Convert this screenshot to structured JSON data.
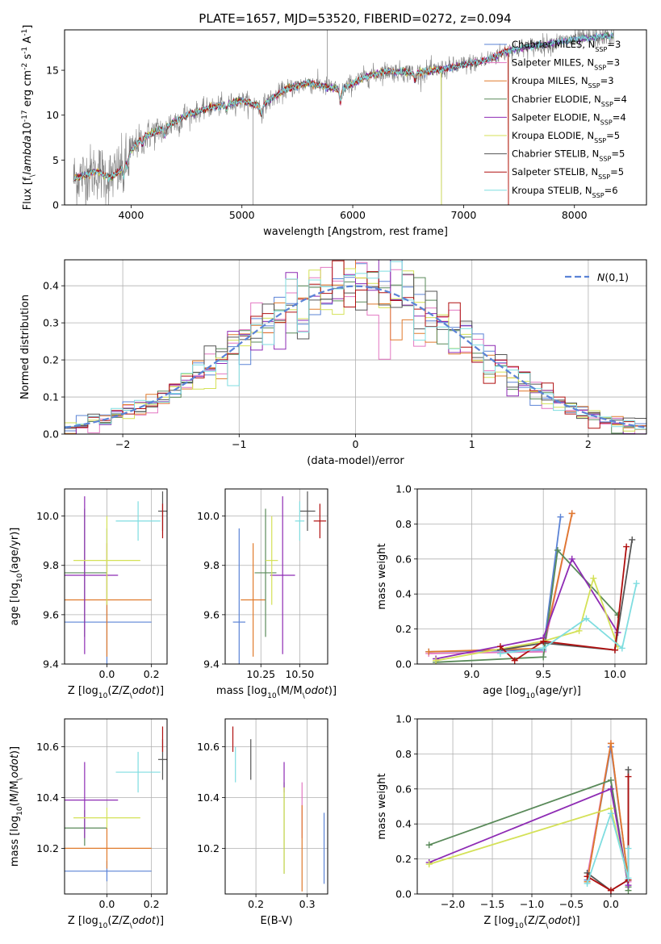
{
  "title": "PLATE=1657, MJD=53520, FIBERID=0272, z=0.094",
  "series_names": [
    "Chabrier MILES, N$_{SSP}$=3",
    "Salpeter MILES, N$_{SSP}$=3",
    "Kroupa MILES, N$_{SSP}$=3",
    "Chabrier ELODIE, N$_{SSP}$=4",
    "Salpeter ELODIE, N$_{SSP}$=4",
    "Kroupa ELODIE, N$_{SSP}$=5",
    "Chabrier STELIB, N$_{SSP}$=5",
    "Salpeter STELIB, N$_{SSP}$=5",
    "Kroupa STELIB, N$_{SSP}$=6"
  ],
  "colors": {
    "chabrier_miles": "#5b83d6",
    "salpeter_miles": "#e377c2",
    "kroupa_miles": "#e07a2c",
    "chabrier_elodie": "#5a8a5a",
    "salpeter_elodie": "#8e2bb4",
    "kroupa_elodie": "#d4e157",
    "chabrier_stelib": "#555555",
    "salpeter_stelib": "#b01010",
    "kroupa_stelib": "#7fdde0",
    "data": "#808080",
    "grid": "#b0b0b0"
  },
  "chart_data": [
    {
      "type": "line",
      "panel": "spectrum",
      "xlabel": "wavelength [Angstrom, rest frame]",
      "ylabel": "Flux [f$_\\lambda$10$^{-17}$ erg cm$^{-2}$ s$^{-1}$ A$^{-1}$]",
      "xlim": [
        3400,
        8650
      ],
      "ylim": [
        0,
        19.5
      ],
      "xticks": [
        4000,
        5000,
        6000,
        7000,
        8000
      ],
      "yticks": [
        0,
        5,
        10,
        15
      ],
      "legend": "top-right",
      "model_anchor": {
        "x": [
          3500,
          3700,
          3800,
          3900,
          4000,
          4100,
          4300,
          4500,
          4700,
          4860,
          5000,
          5175,
          5400,
          5600,
          5890,
          6100,
          6300,
          6563,
          6800,
          7000,
          7200,
          7400,
          7700,
          8000,
          8300
        ],
        "y": [
          3.0,
          3.8,
          3.0,
          3.8,
          6.0,
          7.5,
          8.6,
          10.0,
          10.8,
          11.2,
          11.6,
          11.0,
          12.9,
          13.6,
          12.8,
          14.2,
          14.9,
          14.7,
          15.1,
          15.6,
          16.1,
          17.2,
          17.8,
          18.4,
          18.8
        ]
      },
      "spikes": [
        {
          "x": 5100,
          "y": 0
        },
        {
          "x": 5770,
          "y": 19.5
        },
        {
          "x": 6800,
          "y": 0
        },
        {
          "x": 7405,
          "y": 0
        }
      ]
    },
    {
      "type": "histogram",
      "panel": "residuals",
      "xlabel": "(data-model)/error",
      "ylabel": "Normed distribution",
      "xlim": [
        -2.5,
        2.5
      ],
      "ylim": [
        0,
        0.47
      ],
      "xticks": [
        -2,
        -1,
        0,
        1,
        2
      ],
      "yticks": [
        0.0,
        0.1,
        0.2,
        0.3,
        0.4
      ],
      "legend_label": "$\\mathcal{N}(0,1)$",
      "legend": "top-right",
      "bin_width": 0.1,
      "bin_start": -2.5
    },
    {
      "type": "errorbar",
      "panel": "age_vs_Z",
      "xlabel": "Z [log$_{10}$(Z/Z$_\\odot$)]",
      "ylabel": "age  [log$_{10}$(age/yr)]",
      "xlim": [
        -0.19,
        0.27
      ],
      "ylim": [
        9.4,
        10.11
      ],
      "xticks": [
        -0.0,
        0.2
      ],
      "xticklabels": [
        "0.0",
        "0.2"
      ],
      "yticks": [
        9.4,
        9.6,
        9.8,
        10.0
      ],
      "points": [
        {
          "model": 0,
          "x": 0.0,
          "xerr": 0.2,
          "y": 9.57,
          "yerr": 0.38
        },
        {
          "model": 1,
          "x": 0.0,
          "xerr": 0.0,
          "y": 9.66,
          "yerr": 0.0
        },
        {
          "model": 2,
          "x": 0.0,
          "xerr": 0.2,
          "y": 9.66,
          "yerr": 0.23
        },
        {
          "model": 3,
          "x": -0.1,
          "xerr": 0.1,
          "y": 9.77,
          "yerr": 0.26
        },
        {
          "model": 4,
          "x": -0.1,
          "xerr": 0.15,
          "y": 9.76,
          "yerr": 0.32
        },
        {
          "model": 5,
          "x": 0.0,
          "xerr": 0.15,
          "y": 9.82,
          "yerr": 0.18
        },
        {
          "model": 6,
          "x": 0.25,
          "xerr": 0.02,
          "y": 10.02,
          "yerr": 0.08
        },
        {
          "model": 7,
          "x": 0.25,
          "xerr": 0.0,
          "y": 9.98,
          "yerr": 0.07
        },
        {
          "model": 8,
          "x": 0.14,
          "xerr": 0.1,
          "y": 9.98,
          "yerr": 0.08
        }
      ]
    },
    {
      "type": "errorbar",
      "panel": "age_vs_mass",
      "xlabel": "mass [log$_{10}$(M/M$_\\odot$)]",
      "ylabel": "",
      "xlim": [
        10.02,
        10.68
      ],
      "ylim": [
        9.4,
        10.11
      ],
      "xticks": [
        10.25,
        10.5
      ],
      "xticklabels": [
        "10.25",
        "10.50"
      ],
      "yticks": [
        9.4,
        9.6,
        9.8,
        10.0
      ],
      "points": [
        {
          "model": 0,
          "x": 10.11,
          "xerr": 0.04,
          "y": 9.57,
          "yerr": 0.38
        },
        {
          "model": 1,
          "x": 10.33,
          "xerr": 0.0,
          "y": 9.66,
          "yerr": 0.0
        },
        {
          "model": 2,
          "x": 10.2,
          "xerr": 0.08,
          "y": 9.66,
          "yerr": 0.23
        },
        {
          "model": 3,
          "x": 10.28,
          "xerr": 0.07,
          "y": 9.77,
          "yerr": 0.26
        },
        {
          "model": 4,
          "x": 10.39,
          "xerr": 0.08,
          "y": 9.76,
          "yerr": 0.32
        },
        {
          "model": 5,
          "x": 10.32,
          "xerr": 0.04,
          "y": 9.82,
          "yerr": 0.18
        },
        {
          "model": 6,
          "x": 10.55,
          "xerr": 0.05,
          "y": 10.02,
          "yerr": 0.08
        },
        {
          "model": 7,
          "x": 10.63,
          "xerr": 0.04,
          "y": 9.98,
          "yerr": 0.07
        },
        {
          "model": 8,
          "x": 10.5,
          "xerr": 0.03,
          "y": 9.98,
          "yerr": 0.08
        }
      ]
    },
    {
      "type": "line",
      "panel": "weight_vs_age",
      "xlabel": "age  [log$_{10}$(age/yr)]",
      "ylabel": "mass weight",
      "xlim": [
        8.62,
        10.22
      ],
      "ylim": [
        0,
        1.0
      ],
      "xticks": [
        9.0,
        9.5,
        10.0
      ],
      "xticklabels": [
        "9.0",
        "9.5",
        "10.0"
      ],
      "yticks": [
        0.0,
        0.2,
        0.4,
        0.6,
        0.8,
        1.0
      ],
      "series": [
        {
          "model": 0,
          "x": [
            8.7,
            9.5,
            9.62
          ],
          "y": [
            0.07,
            0.08,
            0.84
          ]
        },
        {
          "model": 1,
          "x": [
            8.7,
            9.5,
            9.7
          ],
          "y": [
            0.06,
            0.07,
            0.86
          ]
        },
        {
          "model": 2,
          "x": [
            8.7,
            9.5,
            9.7
          ],
          "y": [
            0.07,
            0.09,
            0.86
          ]
        },
        {
          "model": 3,
          "x": [
            8.75,
            9.5,
            9.6,
            10.02
          ],
          "y": [
            0.01,
            0.04,
            0.65,
            0.28
          ]
        },
        {
          "model": 4,
          "x": [
            8.75,
            9.5,
            9.7,
            10.02
          ],
          "y": [
            0.03,
            0.15,
            0.6,
            0.18
          ]
        },
        {
          "model": 5,
          "x": [
            8.75,
            9.5,
            9.75,
            9.85,
            10.02
          ],
          "y": [
            0.02,
            0.13,
            0.19,
            0.49,
            0.1
          ]
        },
        {
          "model": 6,
          "x": [
            9.2,
            9.5,
            10.0,
            10.12
          ],
          "y": [
            0.08,
            0.12,
            0.08,
            0.71
          ]
        },
        {
          "model": 7,
          "x": [
            9.2,
            9.3,
            9.5,
            10.0,
            10.08
          ],
          "y": [
            0.1,
            0.02,
            0.13,
            0.08,
            0.67
          ]
        },
        {
          "model": 8,
          "x": [
            9.2,
            9.5,
            9.8,
            10.05,
            10.15
          ],
          "y": [
            0.06,
            0.09,
            0.26,
            0.09,
            0.46
          ]
        }
      ]
    },
    {
      "type": "errorbar",
      "panel": "mass_vs_Z",
      "xlabel": "Z [log$_{10}$(Z/Z$_\\odot$)]",
      "ylabel": "mass [log$_{10}$(M/M$_\\odot$)]",
      "xlim": [
        -0.19,
        0.27
      ],
      "ylim": [
        10.02,
        10.71
      ],
      "xticks": [
        -0.0,
        0.2
      ],
      "xticklabels": [
        "0.0",
        "0.2"
      ],
      "yticks": [
        10.2,
        10.4,
        10.6
      ],
      "points": [
        {
          "model": 0,
          "x": 0.0,
          "xerr": 0.2,
          "y": 10.11,
          "yerr": 0.04
        },
        {
          "model": 1,
          "x": 0.0,
          "xerr": 0.0,
          "y": 10.33,
          "yerr": 0.0
        },
        {
          "model": 2,
          "x": 0.0,
          "xerr": 0.2,
          "y": 10.2,
          "yerr": 0.08
        },
        {
          "model": 3,
          "x": -0.1,
          "xerr": 0.1,
          "y": 10.28,
          "yerr": 0.07
        },
        {
          "model": 4,
          "x": -0.1,
          "xerr": 0.15,
          "y": 10.39,
          "yerr": 0.15
        },
        {
          "model": 5,
          "x": 0.0,
          "xerr": 0.15,
          "y": 10.32,
          "yerr": 0.04
        },
        {
          "model": 6,
          "x": 0.25,
          "xerr": 0.02,
          "y": 10.55,
          "yerr": 0.08
        },
        {
          "model": 7,
          "x": 0.25,
          "xerr": 0.0,
          "y": 10.63,
          "yerr": 0.05
        },
        {
          "model": 8,
          "x": 0.14,
          "xerr": 0.1,
          "y": 10.5,
          "yerr": 0.08
        }
      ]
    },
    {
      "type": "errorbar",
      "panel": "mass_vs_EBV",
      "xlabel": "E(B-V)",
      "ylabel": "",
      "xlim": [
        0.14,
        0.34
      ],
      "ylim": [
        10.02,
        10.71
      ],
      "xticks": [
        0.2,
        0.3
      ],
      "xticklabels": [
        "0.2",
        "0.3"
      ],
      "yticks": [
        10.2,
        10.4,
        10.6
      ],
      "points": [
        {
          "model": 0,
          "x": 0.333,
          "xerr": 0.0,
          "y": 10.2,
          "yerr": 0.14
        },
        {
          "model": 1,
          "x": 0.29,
          "xerr": 0.0,
          "y": 10.35,
          "yerr": 0.11
        },
        {
          "model": 2,
          "x": 0.29,
          "xerr": 0.0,
          "y": 10.2,
          "yerr": 0.17
        },
        {
          "model": 3,
          "x": 0.255,
          "xerr": 0.0,
          "y": 10.28,
          "yerr": 0.18
        },
        {
          "model": 4,
          "x": 0.255,
          "xerr": 0.0,
          "y": 10.48,
          "yerr": 0.06
        },
        {
          "model": 5,
          "x": 0.255,
          "xerr": 0.0,
          "y": 10.27,
          "yerr": 0.17
        },
        {
          "model": 6,
          "x": 0.19,
          "xerr": 0.0,
          "y": 10.55,
          "yerr": 0.08
        },
        {
          "model": 7,
          "x": 0.155,
          "xerr": 0.0,
          "y": 10.63,
          "yerr": 0.05
        },
        {
          "model": 8,
          "x": 0.16,
          "xerr": 0.0,
          "y": 10.53,
          "yerr": 0.07
        }
      ]
    },
    {
      "type": "line",
      "panel": "weight_vs_Z",
      "xlabel": "Z [log$_{10}$(Z/Z$_\\odot$)]",
      "ylabel": "mass weight",
      "xlim": [
        -2.45,
        0.45
      ],
      "ylim": [
        0,
        1.0
      ],
      "xticks": [
        -2.0,
        -1.5,
        -1.0,
        -0.5,
        0.0
      ],
      "xticklabels": [
        "−2.0",
        "−1.5",
        "−1.0",
        "−0.5",
        "0.0"
      ],
      "yticks": [
        0.0,
        0.2,
        0.4,
        0.6,
        0.8,
        1.0
      ],
      "series": [
        {
          "model": 0,
          "x": [
            -0.3,
            0.0,
            0.22
          ],
          "y": [
            0.08,
            0.84,
            0.08
          ]
        },
        {
          "model": 1,
          "x": [
            -0.3,
            0.0,
            0.22
          ],
          "y": [
            0.1,
            0.86,
            0.07
          ]
        },
        {
          "model": 2,
          "x": [
            -0.3,
            0.0,
            0.22
          ],
          "y": [
            0.07,
            0.86,
            0.08
          ]
        },
        {
          "model": 3,
          "x": [
            -2.3,
            0.0,
            0.22,
            0.22
          ],
          "y": [
            0.28,
            0.65,
            0.04,
            0.02
          ]
        },
        {
          "model": 4,
          "x": [
            -2.3,
            0.0,
            0.22
          ],
          "y": [
            0.18,
            0.6,
            0.05
          ]
        },
        {
          "model": 5,
          "x": [
            -2.3,
            0.0,
            0.22
          ],
          "y": [
            0.17,
            0.49,
            0.08
          ]
        },
        {
          "model": 6,
          "x": [
            -0.3,
            0.0,
            0.22,
            0.22
          ],
          "y": [
            0.12,
            0.02,
            0.08,
            0.71
          ]
        },
        {
          "model": 7,
          "x": [
            -0.3,
            0.0,
            0.22,
            0.22
          ],
          "y": [
            0.1,
            0.02,
            0.08,
            0.67
          ]
        },
        {
          "model": 8,
          "x": [
            -0.3,
            0.0,
            0.22,
            0.22
          ],
          "y": [
            0.06,
            0.46,
            0.09,
            0.26
          ]
        }
      ]
    }
  ]
}
